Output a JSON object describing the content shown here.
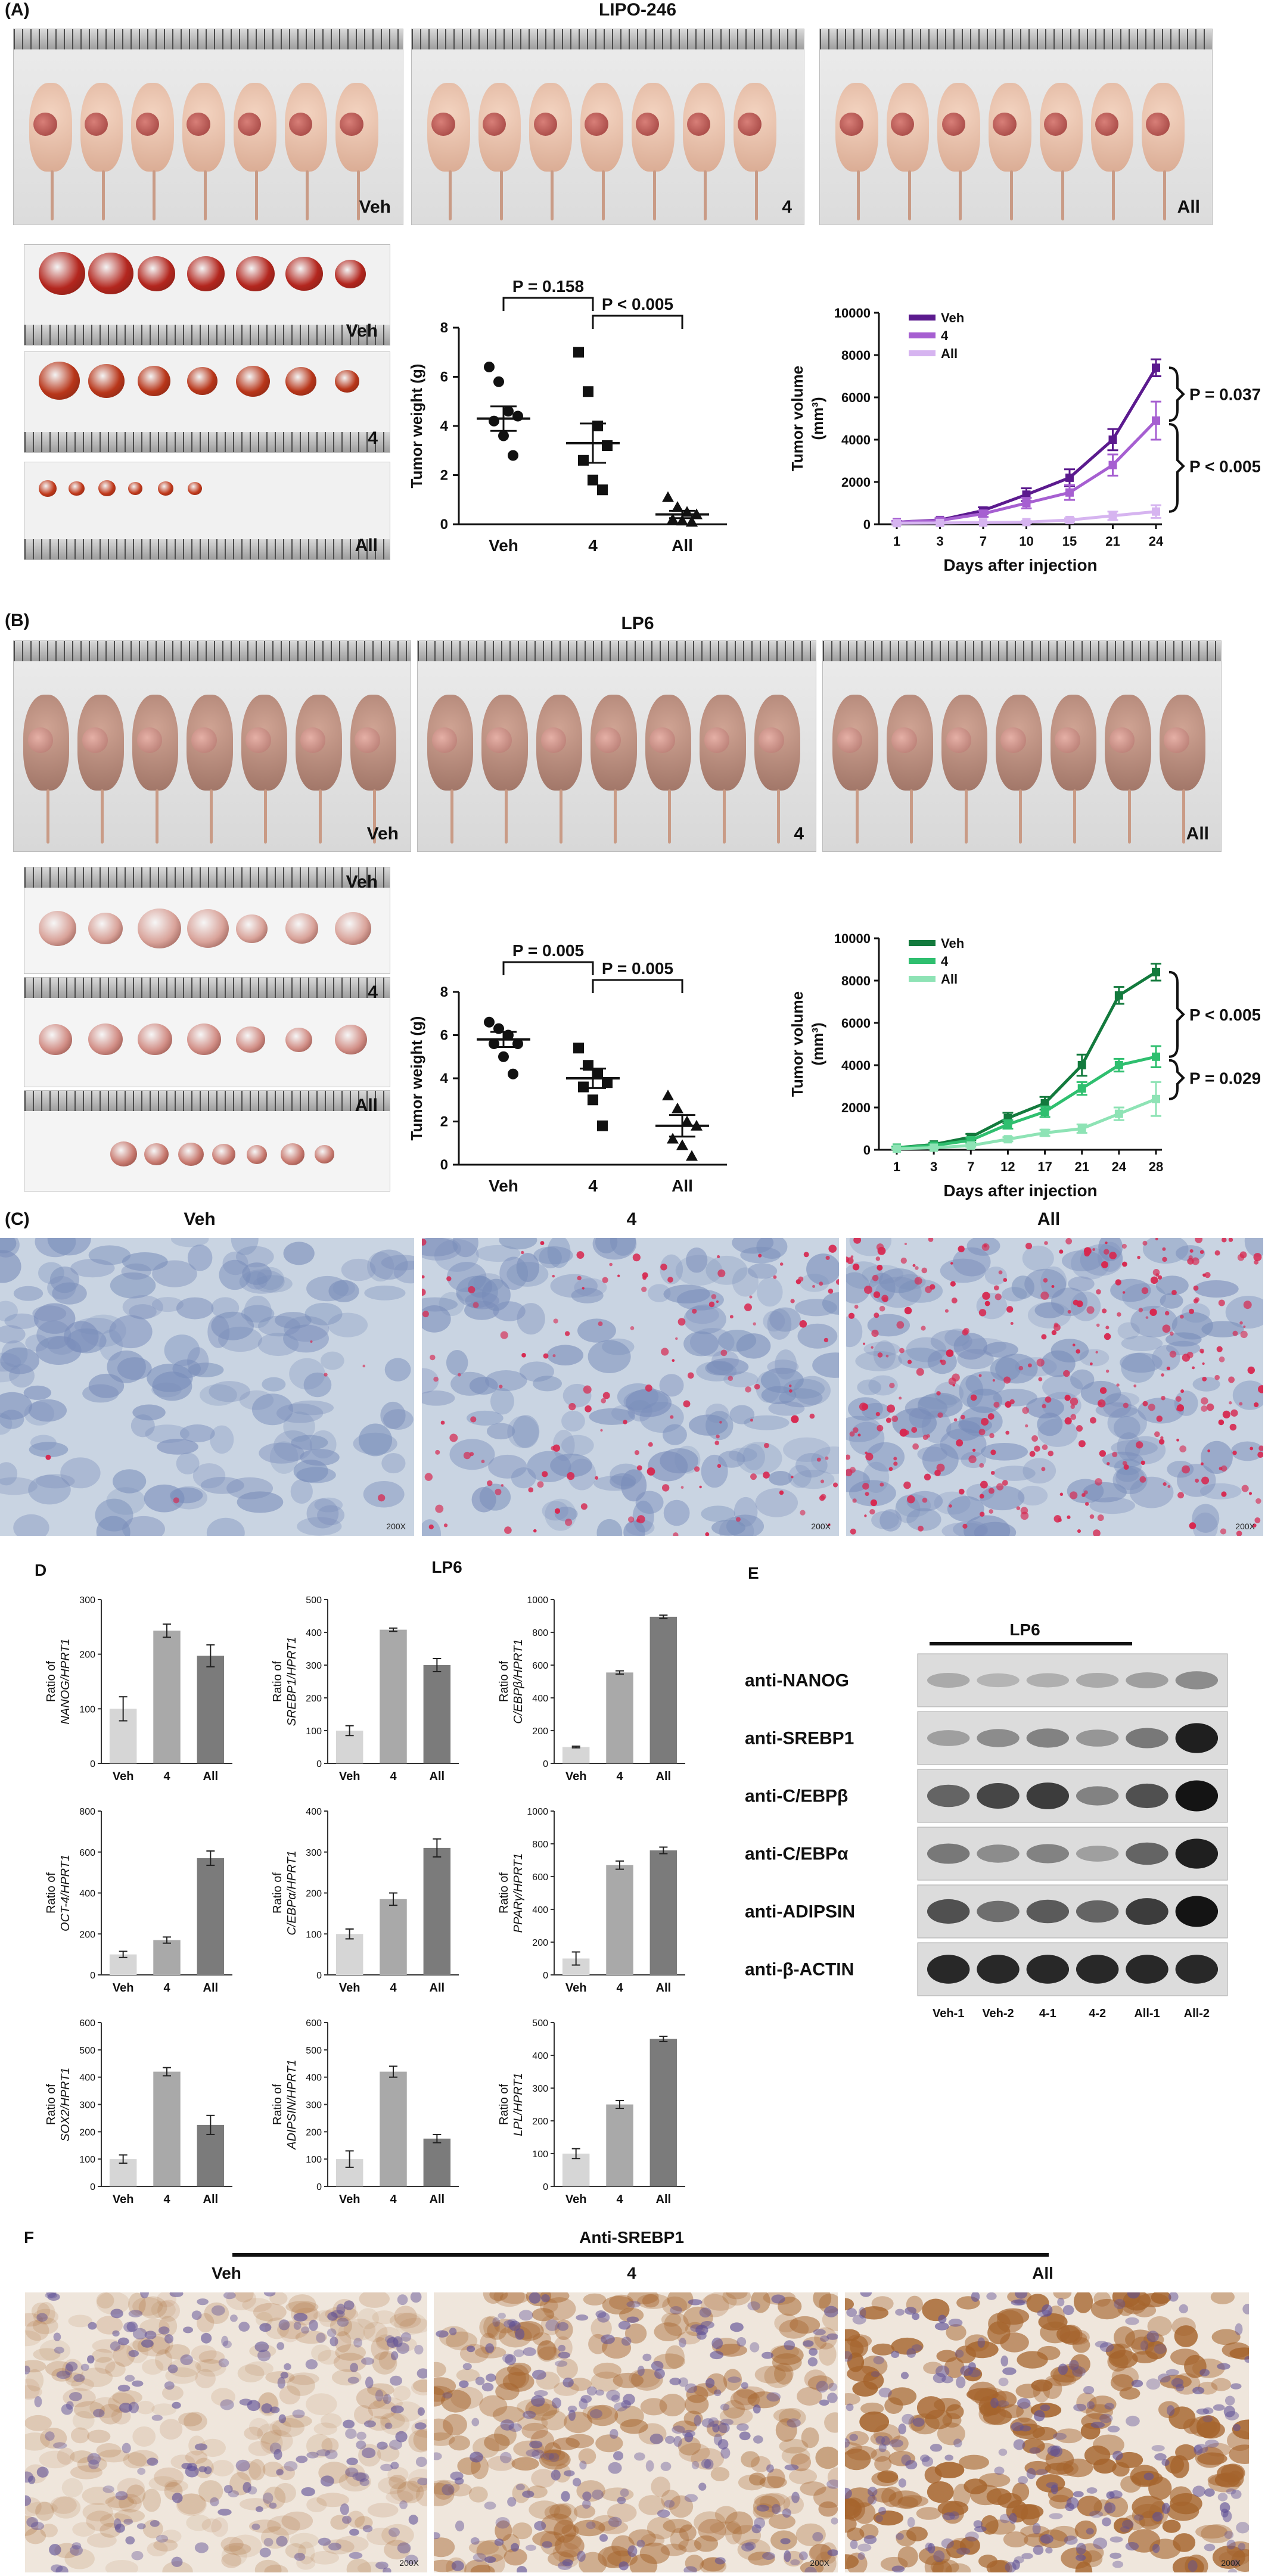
{
  "panelA": {
    "label": "(A)",
    "title": "LIPO-246",
    "photo_labels": [
      "Veh",
      "4",
      "All"
    ],
    "tumor_labels": [
      "Veh",
      "4",
      "All"
    ],
    "weight_chart": {
      "type": "scatter",
      "ylabel": "Tumor weight (g)",
      "categories": [
        "Veh",
        "4",
        "All"
      ],
      "ylim": [
        0,
        8
      ],
      "yticks": [
        "0",
        "2",
        "4",
        "6",
        "8"
      ],
      "groups": [
        {
          "name": "Veh",
          "points": [
            6.4,
            5.8,
            4.6,
            4.4,
            4.2,
            3.6,
            2.8
          ],
          "mean": 4.3,
          "sem": 0.5
        },
        {
          "name": "4",
          "points": [
            7.0,
            5.4,
            4.0,
            3.2,
            2.6,
            1.8,
            1.4
          ],
          "mean": 3.3,
          "sem": 0.8
        },
        {
          "name": "All",
          "points": [
            1.1,
            0.7,
            0.5,
            0.4,
            0.2,
            0.15,
            0.1
          ],
          "mean": 0.4,
          "sem": 0.15
        }
      ],
      "brackets": [
        {
          "from": "Veh",
          "to": "4",
          "text": "P = 0.158"
        },
        {
          "from": "4",
          "to": "All",
          "text": "P < 0.005"
        }
      ]
    },
    "volume_chart": {
      "type": "line",
      "ylabel": "Tumor volume (mm³)",
      "xlabel": "Days after injection",
      "x": [
        "1",
        "3",
        "7",
        "10",
        "15",
        "21",
        "24"
      ],
      "ylim": [
        0,
        10000
      ],
      "yticks": [
        "0",
        "2000",
        "4000",
        "6000",
        "8000",
        "10000"
      ],
      "series": [
        {
          "name": "Veh",
          "color": "#5b1a8e",
          "values": [
            100,
            200,
            650,
            1400,
            2200,
            4000,
            7400
          ],
          "err": [
            50,
            80,
            150,
            300,
            400,
            500,
            400
          ]
        },
        {
          "name": "4",
          "color": "#a65fd1",
          "values": [
            100,
            180,
            500,
            1000,
            1500,
            2800,
            4900
          ],
          "err": [
            50,
            80,
            150,
            250,
            350,
            500,
            900
          ]
        },
        {
          "name": "All",
          "color": "#d6b4f0",
          "values": [
            50,
            60,
            80,
            100,
            200,
            400,
            600
          ],
          "err": [
            30,
            30,
            40,
            50,
            80,
            200,
            300
          ]
        }
      ],
      "annotations": [
        "P = 0.037",
        "P < 0.005"
      ]
    }
  },
  "panelB": {
    "label": "(B)",
    "title": "LP6",
    "photo_labels": [
      "Veh",
      "4",
      "All"
    ],
    "tumor_labels": [
      "Veh",
      "4",
      "All"
    ],
    "weight_chart": {
      "type": "scatter",
      "ylabel": "Tumor weight (g)",
      "categories": [
        "Veh",
        "4",
        "All"
      ],
      "ylim": [
        0,
        8
      ],
      "yticks": [
        "0",
        "2",
        "4",
        "6",
        "8"
      ],
      "groups": [
        {
          "name": "Veh",
          "points": [
            6.6,
            6.3,
            6.0,
            5.6,
            5.6,
            5.0,
            4.2
          ],
          "mean": 5.8,
          "sem": 0.35
        },
        {
          "name": "4",
          "points": [
            5.4,
            4.6,
            4.2,
            3.8,
            3.6,
            3.0,
            1.8
          ],
          "mean": 4.0,
          "sem": 0.45
        },
        {
          "name": "All",
          "points": [
            3.2,
            2.6,
            2.0,
            1.8,
            1.2,
            0.9,
            0.4
          ],
          "mean": 1.8,
          "sem": 0.5
        }
      ],
      "brackets": [
        {
          "from": "Veh",
          "to": "4",
          "text": "P = 0.005"
        },
        {
          "from": "4",
          "to": "All",
          "text": "P = 0.005"
        }
      ]
    },
    "volume_chart": {
      "type": "line",
      "ylabel": "Tumor volume (mm³)",
      "xlabel": "Days after injection",
      "x": [
        "1",
        "3",
        "7",
        "12",
        "17",
        "21",
        "24",
        "28"
      ],
      "ylim": [
        0,
        10000
      ],
      "yticks": [
        "0",
        "2000",
        "4000",
        "6000",
        "8000",
        "10000"
      ],
      "series": [
        {
          "name": "Veh",
          "color": "#137a3d",
          "values": [
            100,
            250,
            600,
            1500,
            2200,
            4000,
            7300,
            8400
          ],
          "err": [
            50,
            80,
            150,
            250,
            300,
            500,
            400,
            400
          ]
        },
        {
          "name": "4",
          "color": "#2fbf6f",
          "values": [
            100,
            200,
            450,
            1200,
            1800,
            2900,
            4000,
            4400
          ],
          "err": [
            50,
            80,
            120,
            200,
            250,
            300,
            300,
            500
          ]
        },
        {
          "name": "All",
          "color": "#8ee3b5",
          "values": [
            50,
            100,
            200,
            500,
            800,
            1000,
            1700,
            2400
          ],
          "err": [
            30,
            40,
            60,
            100,
            150,
            200,
            300,
            800
          ]
        }
      ],
      "annotations": [
        "P < 0.005",
        "P = 0.029"
      ]
    }
  },
  "panelC": {
    "label": "(C)",
    "headers": [
      "Veh",
      "4",
      "All"
    ],
    "magnification": "200X"
  },
  "panelD": {
    "label": "D",
    "title": "LP6",
    "charts": [
      {
        "gene": "NANOG",
        "ylabel": "Ratio of NANOG/HPRT1",
        "ymax": 300,
        "yticks": [
          "0",
          "100",
          "200",
          "300"
        ],
        "categories": [
          "Veh",
          "4",
          "All"
        ],
        "values": [
          100,
          243,
          197
        ],
        "err": [
          22,
          12,
          20
        ]
      },
      {
        "gene": "SREBP1",
        "ylabel": "Ratio of SREBP1/HPRT1",
        "ymax": 500,
        "yticks": [
          "0",
          "100",
          "200",
          "300",
          "400",
          "500"
        ],
        "categories": [
          "Veh",
          "4",
          "All"
        ],
        "values": [
          100,
          408,
          300
        ],
        "err": [
          15,
          5,
          20
        ]
      },
      {
        "gene": "C/EBPβ",
        "ylabel": "Ratio of C/EBPβ/HPRT1",
        "ymax": 1000,
        "yticks": [
          "0",
          "200",
          "400",
          "600",
          "800",
          "1000"
        ],
        "categories": [
          "Veh",
          "4",
          "All"
        ],
        "values": [
          100,
          555,
          895
        ],
        "err": [
          5,
          10,
          10
        ]
      },
      {
        "gene": "OCT-4",
        "ylabel": "Ratio of OCT-4/HPRT1",
        "ymax": 800,
        "yticks": [
          "0",
          "200",
          "400",
          "600",
          "800"
        ],
        "categories": [
          "Veh",
          "4",
          "All"
        ],
        "values": [
          100,
          170,
          570
        ],
        "err": [
          15,
          15,
          35
        ]
      },
      {
        "gene": "C/EBPα",
        "ylabel": "Ratio of C/EBPα/HPRT1",
        "ymax": 400,
        "yticks": [
          "0",
          "100",
          "200",
          "300",
          "400"
        ],
        "categories": [
          "Veh",
          "4",
          "All"
        ],
        "values": [
          100,
          185,
          310
        ],
        "err": [
          12,
          15,
          22
        ]
      },
      {
        "gene": "PPARγ",
        "ylabel": "Ratio of PPARγ/HPRT1",
        "ymax": 1000,
        "yticks": [
          "0",
          "200",
          "400",
          "600",
          "800",
          "1000"
        ],
        "categories": [
          "Veh",
          "4",
          "All"
        ],
        "values": [
          100,
          670,
          760
        ],
        "err": [
          40,
          25,
          20
        ]
      },
      {
        "gene": "SOX2",
        "ylabel": "Ratio of SOX2/HPRT1",
        "ymax": 600,
        "yticks": [
          "0",
          "100",
          "200",
          "300",
          "400",
          "500",
          "600"
        ],
        "categories": [
          "Veh",
          "4",
          "All"
        ],
        "values": [
          100,
          420,
          225
        ],
        "err": [
          15,
          15,
          35
        ]
      },
      {
        "gene": "ADIPSIN",
        "ylabel": "Ratio of ADIPSIN/HPRT1",
        "ymax": 600,
        "yticks": [
          "0",
          "100",
          "200",
          "300",
          "400",
          "500",
          "600"
        ],
        "categories": [
          "Veh",
          "4",
          "All"
        ],
        "values": [
          100,
          420,
          175
        ],
        "err": [
          30,
          20,
          15
        ]
      },
      {
        "gene": "LPL",
        "ylabel": "Ratio of LPL/HPRT1",
        "ymax": 500,
        "yticks": [
          "0",
          "100",
          "200",
          "300",
          "400",
          "500"
        ],
        "categories": [
          "Veh",
          "4",
          "All"
        ],
        "values": [
          100,
          250,
          450
        ],
        "err": [
          15,
          12,
          8
        ]
      }
    ],
    "bar_colors": [
      "#d6d6d6",
      "#a9a9a9",
      "#7b7b7b"
    ]
  },
  "panelE": {
    "label": "E",
    "title": "LP6",
    "rows": [
      "anti-NANOG",
      "anti-SREBP1",
      "anti-C/EBPβ",
      "anti-C/EBPα",
      "anti-ADIPSIN",
      "anti-β-ACTIN"
    ],
    "lanes": [
      "Veh-1",
      "Veh-2",
      "4-1",
      "4-2",
      "All-1",
      "All-2"
    ],
    "intensity": [
      [
        0.25,
        0.2,
        0.22,
        0.25,
        0.3,
        0.4
      ],
      [
        0.3,
        0.4,
        0.45,
        0.35,
        0.5,
        0.95
      ],
      [
        0.6,
        0.75,
        0.8,
        0.45,
        0.7,
        1.0
      ],
      [
        0.5,
        0.4,
        0.45,
        0.3,
        0.6,
        0.95
      ],
      [
        0.7,
        0.55,
        0.65,
        0.6,
        0.8,
        1.0
      ],
      [
        0.9,
        0.9,
        0.9,
        0.9,
        0.9,
        0.9
      ]
    ]
  },
  "panelF": {
    "label": "F",
    "title": "Anti-SREBP1",
    "headers": [
      "Veh",
      "4",
      "All"
    ],
    "magnification": "200X"
  }
}
